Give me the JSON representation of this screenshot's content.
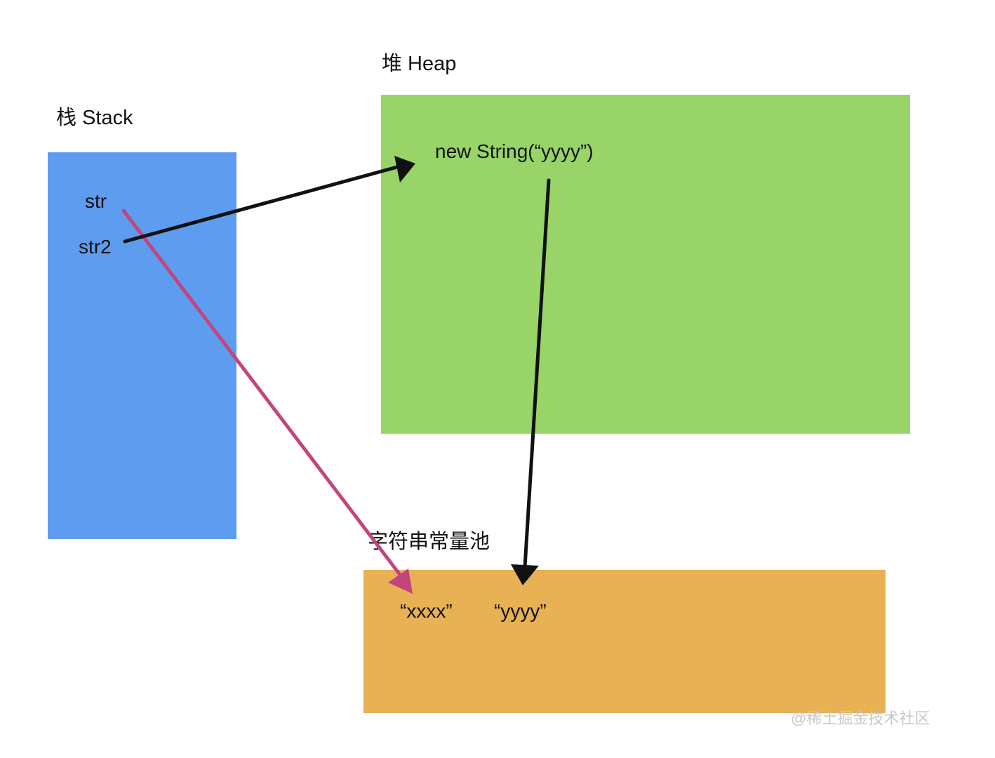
{
  "stack": {
    "title": "栈 Stack",
    "color": "#5e9cf0",
    "variables": [
      "str",
      "str2"
    ]
  },
  "heap": {
    "title": "堆 Heap",
    "color": "#98d468",
    "object": "new  String(“yyyy”)"
  },
  "pool": {
    "title": "字符串常量池",
    "color": "#e8b154",
    "entries": [
      "“xxxx”",
      "“yyyy”"
    ]
  },
  "arrows": {
    "str_to_pool_color": "#c2457e",
    "str2_to_heap_color": "#111111",
    "heap_to_pool_color": "#111111"
  },
  "watermark": "@稀土掘金技术社区"
}
